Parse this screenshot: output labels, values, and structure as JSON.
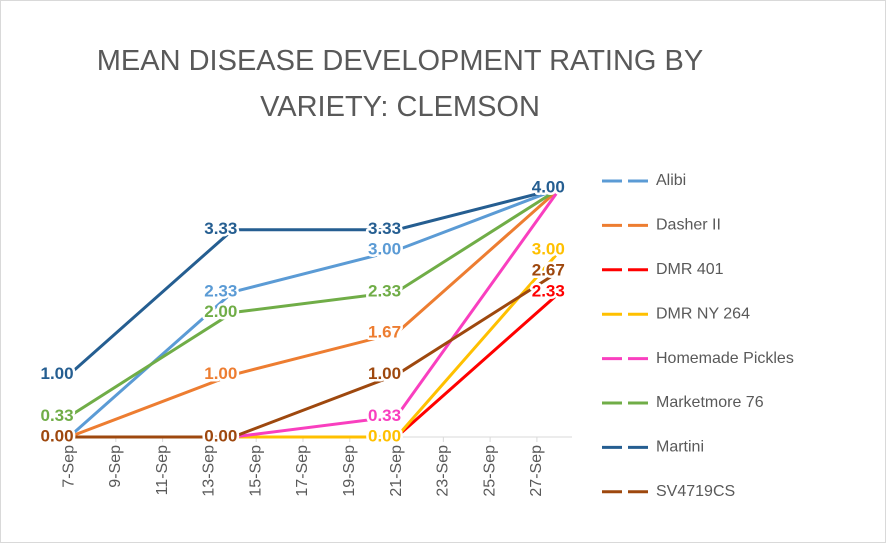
{
  "chart_data": {
    "type": "line",
    "title": "MEAN DISEASE DEVELOPMENT RATING BY VARIETY: CLEMSON",
    "x": [
      7,
      14,
      21,
      28
    ],
    "xlim": [
      6.4,
      28.5
    ],
    "xticks": [
      {
        "value": 7,
        "label": "7-Sep"
      },
      {
        "value": 9,
        "label": "9-Sep"
      },
      {
        "value": 11,
        "label": "11-Sep"
      },
      {
        "value": 13,
        "label": "13-Sep"
      },
      {
        "value": 15,
        "label": "15-Sep"
      },
      {
        "value": 17,
        "label": "17-Sep"
      },
      {
        "value": 19,
        "label": "19-Sep"
      },
      {
        "value": 21,
        "label": "21-Sep"
      },
      {
        "value": 23,
        "label": "23-Sep"
      },
      {
        "value": 25,
        "label": "25-Sep"
      },
      {
        "value": 27,
        "label": "27-Sep"
      }
    ],
    "ylim": [
      0,
      4
    ],
    "legend": "right",
    "series": [
      {
        "name": "Alibi",
        "color": "#5b9bd5",
        "values": [
          0,
          2.33,
          3,
          4
        ],
        "value_labels": [
          null,
          "2.33",
          "3.00",
          null
        ]
      },
      {
        "name": "Dasher II",
        "color": "#ed7d31",
        "values": [
          0,
          1,
          1.67,
          4
        ],
        "value_labels": [
          null,
          "1.00",
          "1.67",
          null
        ]
      },
      {
        "name": "DMR 401",
        "color": "#ff0000",
        "values": [
          0,
          0,
          0,
          2.33
        ],
        "value_labels": [
          null,
          null,
          null,
          "2.33"
        ]
      },
      {
        "name": "DMR NY 264",
        "color": "#ffc000",
        "values": [
          0,
          0,
          0,
          3
        ],
        "value_labels": [
          null,
          null,
          "0.00",
          "3.00"
        ]
      },
      {
        "name": "Homemade Pickles",
        "color": "#f93fbf",
        "values": [
          0,
          0,
          0.33,
          4
        ],
        "value_labels": [
          null,
          null,
          "0.33",
          null
        ]
      },
      {
        "name": "Marketmore 76",
        "color": "#70ad47",
        "values": [
          0.33,
          2,
          2.33,
          4
        ],
        "value_labels": [
          "0.33",
          "2.00",
          "2.33",
          null
        ]
      },
      {
        "name": "Martini",
        "color": "#255e91",
        "values": [
          1,
          3.33,
          3.33,
          4
        ],
        "value_labels": [
          "1.00",
          "3.33",
          "3.33",
          "4.00"
        ]
      },
      {
        "name": "SV4719CS",
        "color": "#9e480e",
        "values": [
          0,
          0,
          1,
          2.67
        ],
        "value_labels": [
          "0.00",
          "0.00",
          "1.00",
          "2.67"
        ]
      }
    ]
  }
}
